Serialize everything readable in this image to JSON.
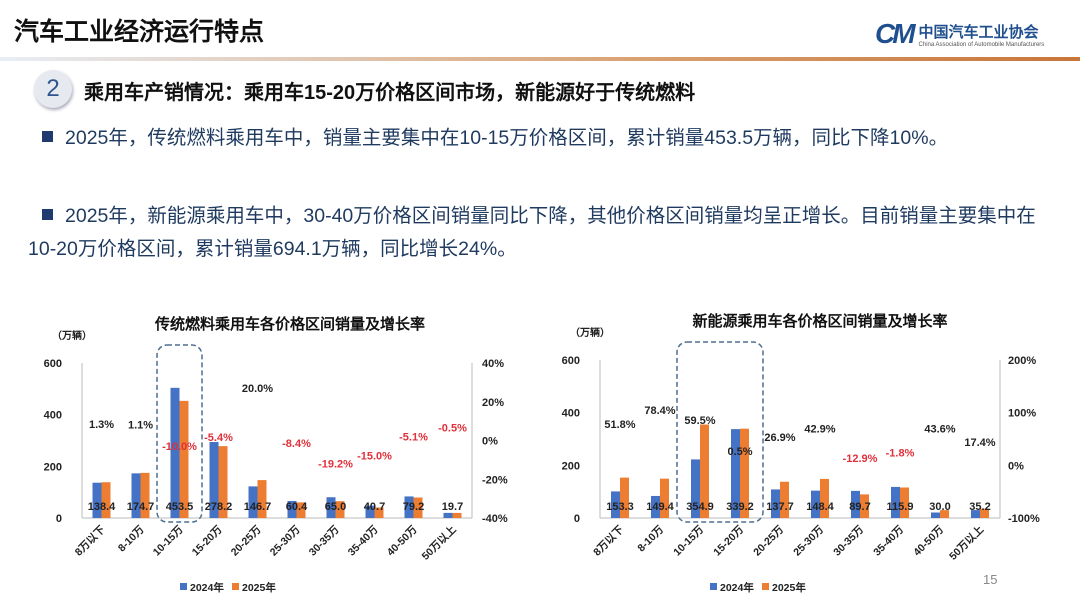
{
  "header": {
    "title": "汽车工业经济运行特点",
    "logo_cn": "中国汽车工业协会",
    "logo_en": "China Association of Automobile Manufacturers",
    "logo_mark": "CM"
  },
  "section": {
    "number": "2",
    "heading": "乘用车产销情况：乘用车15-20万价格区间市场，新能源好于传统燃料"
  },
  "bullets": [
    "2025年，传统燃料乘用车中，销量主要集中在10-15万价格区间，累计销量453.5万辆，同比下降10%。",
    "2025年，新能源乘用车中，30-40万价格区间销量同比下降，其他价格区间销量均呈正增长。目前销量主要集中在10-20万价格区间，累计销量694.1万辆，同比增长24%。"
  ],
  "page_number": "15",
  "colors": {
    "s2024": "#4472c4",
    "s2025": "#ed7d31",
    "negative": "#e0303a",
    "text": "#1f3a5f"
  },
  "chart_data": [
    {
      "type": "bar",
      "title": "传统燃料乘用车各价格区间销量及增长率",
      "ylabel": "（万辆）",
      "ylim": [
        0,
        600
      ],
      "y2lim": [
        -40,
        40
      ],
      "yticks": [
        "0",
        "200",
        "400",
        "600"
      ],
      "y2ticks": [
        "-40%",
        "-20%",
        "0%",
        "20%",
        "40%"
      ],
      "categories": [
        "8万以下",
        "8-10万",
        "10-15万",
        "15-20万",
        "20-25万",
        "25-30万",
        "30-35万",
        "35-40万",
        "40-50万",
        "50万以上"
      ],
      "series": [
        {
          "name": "2024年",
          "values": [
            136.6,
            172.8,
            503.9,
            294.1,
            122.3,
            65.9,
            80.4,
            47.9,
            83.5,
            19.8
          ]
        },
        {
          "name": "2025年",
          "values": [
            138.4,
            174.7,
            453.5,
            278.2,
            146.7,
            60.4,
            65.0,
            40.7,
            79.2,
            19.7
          ]
        }
      ],
      "value_labels": [
        "138.4",
        "174.7",
        "453.5",
        "278.2",
        "146.7",
        "60.4",
        "65.0",
        "40.7",
        "79.2",
        "19.7"
      ],
      "growth": [
        1.3,
        1.1,
        -10.0,
        -5.4,
        20.0,
        -8.4,
        -19.2,
        -15.0,
        -5.1,
        -0.5
      ],
      "growth_labels": [
        "1.3%",
        "1.1%",
        "-10.0%",
        "-5.4%",
        "20.0%",
        "-8.4%",
        "-19.2%",
        "-15.0%",
        "-5.1%",
        "-0.5%"
      ],
      "highlight": "10-15万",
      "legend": "bottom"
    },
    {
      "type": "bar",
      "title": "新能源乘用车各价格区间销量及增长率",
      "ylabel": "（万辆）",
      "ylim": [
        0,
        600
      ],
      "y2lim": [
        -100,
        200
      ],
      "yticks": [
        "0",
        "200",
        "400",
        "600"
      ],
      "y2ticks": [
        "-100%",
        "0%",
        "100%",
        "200%"
      ],
      "categories": [
        "8万以下",
        "8-10万",
        "10-15万",
        "15-20万",
        "20-25万",
        "25-30万",
        "30-35万",
        "35-40万",
        "40-50万",
        "50万以上"
      ],
      "series": [
        {
          "name": "2024年",
          "values": [
            101.0,
            83.7,
            222.5,
            337.5,
            108.5,
            103.9,
            103.0,
            118.0,
            20.9,
            30.0
          ]
        },
        {
          "name": "2025年",
          "values": [
            153.3,
            149.4,
            354.9,
            339.2,
            137.7,
            148.4,
            89.7,
            115.9,
            30.0,
            35.2
          ]
        }
      ],
      "value_labels": [
        "153.3",
        "149.4",
        "354.9",
        "339.2",
        "137.7",
        "148.4",
        "89.7",
        "115.9",
        "30.0",
        "35.2"
      ],
      "growth": [
        51.8,
        78.4,
        59.5,
        0.5,
        26.9,
        42.9,
        -12.9,
        -1.8,
        43.6,
        17.4
      ],
      "growth_labels": [
        "51.8%",
        "78.4%",
        "59.5%",
        "0.5%",
        "26.9%",
        "42.9%",
        "-12.9%",
        "-1.8%",
        "43.6%",
        "17.4%"
      ],
      "highlight": "10-20万",
      "legend": "bottom"
    }
  ]
}
